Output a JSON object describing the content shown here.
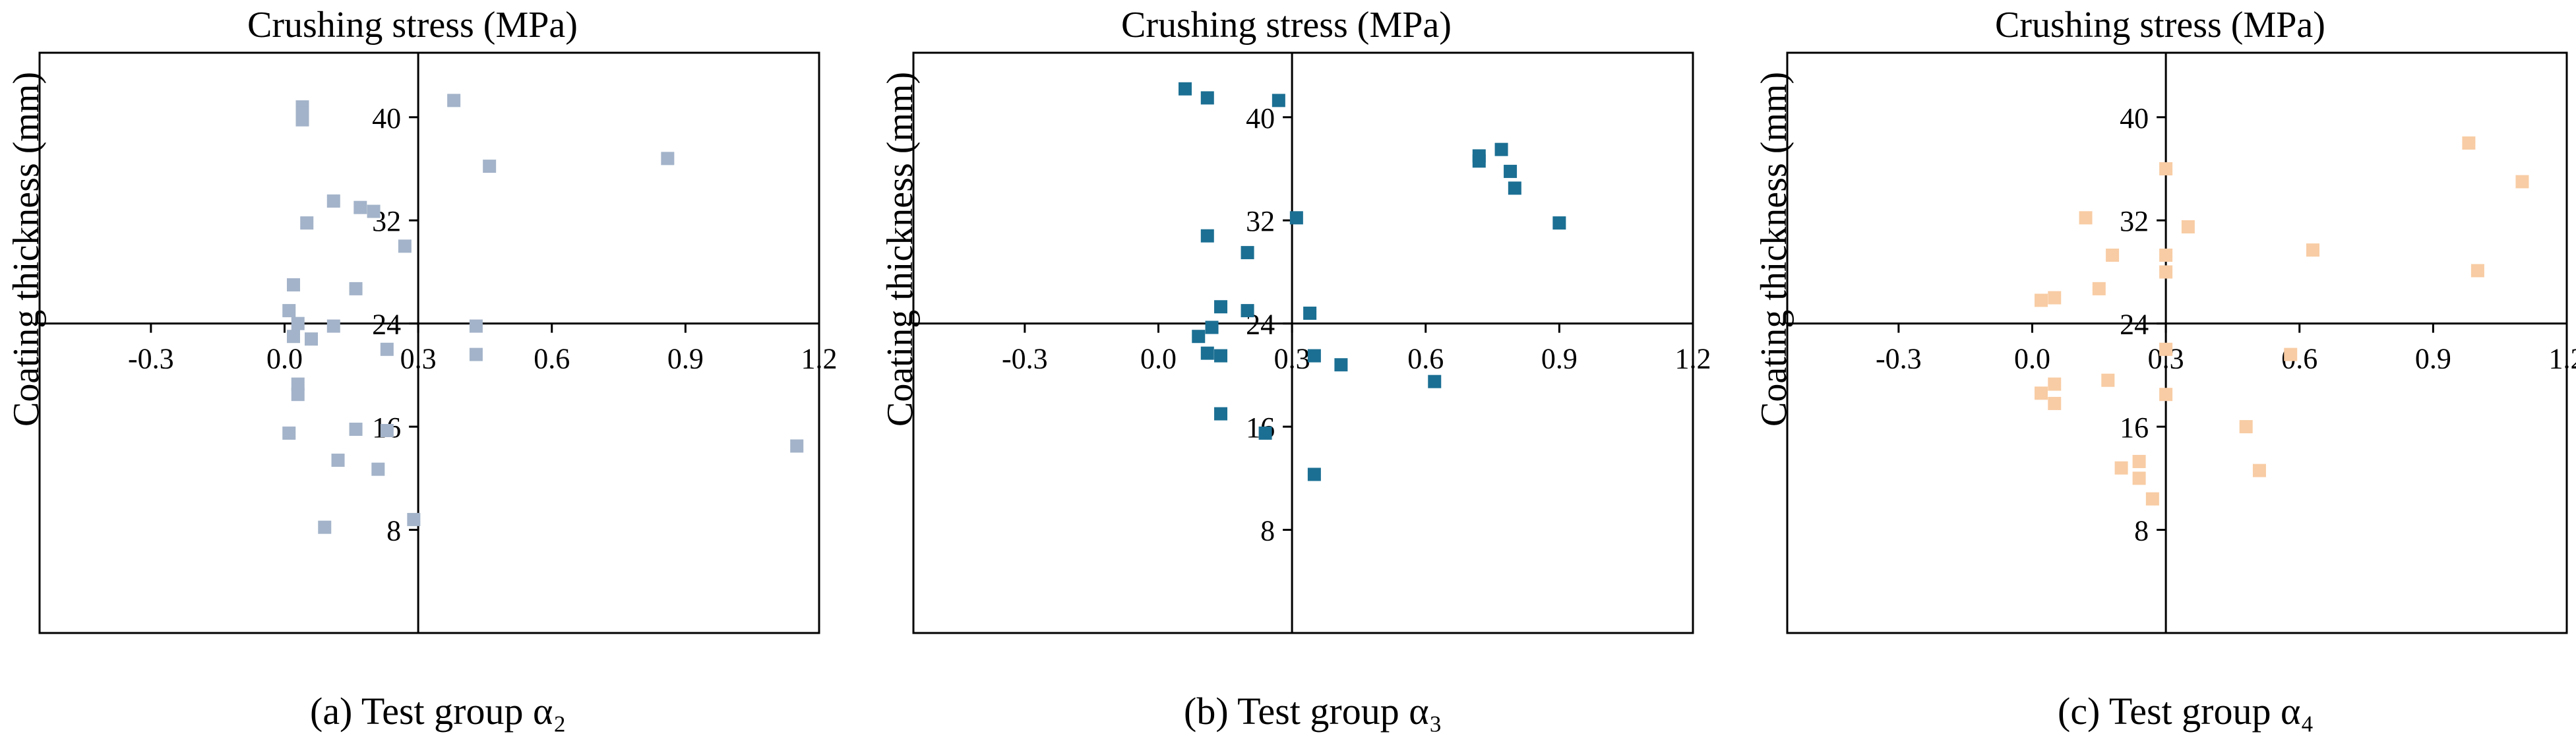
{
  "chart_data": [
    {
      "type": "scatter",
      "title": "Crushing stress (MPa)",
      "ylabel": "Coating thickness (mm)",
      "caption": "(a) Test group α₂",
      "xlim": [
        -0.55,
        1.2
      ],
      "ylim": [
        0,
        45
      ],
      "x_axis_crossing_y": 24,
      "y_axis_crossing_x": 0.3,
      "x_ticks": [
        "-0.3",
        "0.0",
        "0.3",
        "0.6",
        "0.9",
        "1.2"
      ],
      "y_ticks": [
        "8",
        "16",
        "24",
        "32",
        "40"
      ],
      "marker_color": "#a3b3c9",
      "points": [
        {
          "x": 0.04,
          "y": 40.8
        },
        {
          "x": 0.04,
          "y": 40.3
        },
        {
          "x": 0.04,
          "y": 39.8
        },
        {
          "x": 0.38,
          "y": 41.3
        },
        {
          "x": 0.46,
          "y": 36.2
        },
        {
          "x": 0.86,
          "y": 36.8
        },
        {
          "x": 0.11,
          "y": 33.5
        },
        {
          "x": 0.17,
          "y": 33.0
        },
        {
          "x": 0.2,
          "y": 32.7
        },
        {
          "x": 0.05,
          "y": 31.8
        },
        {
          "x": 0.27,
          "y": 30.0
        },
        {
          "x": 0.02,
          "y": 27.0
        },
        {
          "x": 0.16,
          "y": 26.7
        },
        {
          "x": 0.01,
          "y": 25.0
        },
        {
          "x": 0.03,
          "y": 24.0
        },
        {
          "x": 0.11,
          "y": 23.8
        },
        {
          "x": 0.02,
          "y": 23.0
        },
        {
          "x": 0.06,
          "y": 22.8
        },
        {
          "x": 0.23,
          "y": 22.0
        },
        {
          "x": 0.43,
          "y": 23.8
        },
        {
          "x": 0.43,
          "y": 21.6
        },
        {
          "x": 0.03,
          "y": 19.3
        },
        {
          "x": 0.03,
          "y": 18.5
        },
        {
          "x": 0.01,
          "y": 15.5
        },
        {
          "x": 0.16,
          "y": 15.8
        },
        {
          "x": 0.23,
          "y": 15.7
        },
        {
          "x": 0.12,
          "y": 13.4
        },
        {
          "x": 0.21,
          "y": 12.7
        },
        {
          "x": 1.15,
          "y": 14.5
        },
        {
          "x": 0.09,
          "y": 8.2
        },
        {
          "x": 0.29,
          "y": 8.8
        }
      ]
    },
    {
      "type": "scatter",
      "title": "Crushing stress (MPa)",
      "ylabel": "Coating thickness (mm)",
      "caption": "(b) Test group α₃",
      "xlim": [
        -0.55,
        1.2
      ],
      "ylim": [
        0,
        45
      ],
      "x_axis_crossing_y": 24,
      "y_axis_crossing_x": 0.3,
      "x_ticks": [
        "-0.3",
        "0.0",
        "0.3",
        "0.6",
        "0.9",
        "1.2"
      ],
      "y_ticks": [
        "8",
        "16",
        "24",
        "32",
        "40"
      ],
      "marker_color": "#1b6f93",
      "points": [
        {
          "x": 0.06,
          "y": 42.2
        },
        {
          "x": 0.11,
          "y": 41.5
        },
        {
          "x": 0.27,
          "y": 41.3
        },
        {
          "x": 0.72,
          "y": 37.0
        },
        {
          "x": 0.72,
          "y": 36.6
        },
        {
          "x": 0.77,
          "y": 37.5
        },
        {
          "x": 0.79,
          "y": 35.8
        },
        {
          "x": 0.8,
          "y": 34.5
        },
        {
          "x": 0.9,
          "y": 31.8
        },
        {
          "x": 0.31,
          "y": 32.2
        },
        {
          "x": 0.11,
          "y": 30.8
        },
        {
          "x": 0.2,
          "y": 29.5
        },
        {
          "x": 0.14,
          "y": 25.3
        },
        {
          "x": 0.2,
          "y": 25.0
        },
        {
          "x": 0.34,
          "y": 24.8
        },
        {
          "x": 0.12,
          "y": 23.7
        },
        {
          "x": 0.09,
          "y": 23.0
        },
        {
          "x": 0.11,
          "y": 21.7
        },
        {
          "x": 0.14,
          "y": 21.5
        },
        {
          "x": 0.35,
          "y": 21.5
        },
        {
          "x": 0.41,
          "y": 20.8
        },
        {
          "x": 0.62,
          "y": 19.5
        },
        {
          "x": 0.14,
          "y": 17.0
        },
        {
          "x": 0.24,
          "y": 15.5
        },
        {
          "x": 0.35,
          "y": 12.3
        }
      ]
    },
    {
      "type": "scatter",
      "title": "Crushing stress (MPa)",
      "ylabel": "Coating thickness (mm)",
      "caption": "(c) Test group α₄",
      "xlim": [
        -0.55,
        1.2
      ],
      "ylim": [
        0,
        45
      ],
      "x_axis_crossing_y": 24,
      "y_axis_crossing_x": 0.3,
      "x_ticks": [
        "-0.3",
        "0.0",
        "0.3",
        "0.6",
        "0.9",
        "1.2"
      ],
      "y_ticks": [
        "8",
        "16",
        "24",
        "32",
        "40"
      ],
      "marker_color": "#f8cca4",
      "points": [
        {
          "x": 0.98,
          "y": 38.0
        },
        {
          "x": 1.1,
          "y": 35.0
        },
        {
          "x": 0.3,
          "y": 36.0
        },
        {
          "x": 0.12,
          "y": 32.2
        },
        {
          "x": 0.35,
          "y": 31.5
        },
        {
          "x": 0.18,
          "y": 29.3
        },
        {
          "x": 0.3,
          "y": 29.3
        },
        {
          "x": 0.63,
          "y": 29.7
        },
        {
          "x": 0.3,
          "y": 28.0
        },
        {
          "x": 1.0,
          "y": 28.1
        },
        {
          "x": 0.15,
          "y": 26.7
        },
        {
          "x": 0.02,
          "y": 25.8
        },
        {
          "x": 0.05,
          "y": 26.0
        },
        {
          "x": 0.3,
          "y": 22.0
        },
        {
          "x": 0.58,
          "y": 21.6
        },
        {
          "x": 0.05,
          "y": 19.3
        },
        {
          "x": 0.02,
          "y": 18.6
        },
        {
          "x": 0.05,
          "y": 17.8
        },
        {
          "x": 0.17,
          "y": 19.6
        },
        {
          "x": 0.3,
          "y": 18.5
        },
        {
          "x": 0.48,
          "y": 16.0
        },
        {
          "x": 0.51,
          "y": 12.6
        },
        {
          "x": 0.2,
          "y": 12.8
        },
        {
          "x": 0.24,
          "y": 13.3
        },
        {
          "x": 0.24,
          "y": 12.0
        },
        {
          "x": 0.27,
          "y": 10.4
        }
      ]
    }
  ]
}
